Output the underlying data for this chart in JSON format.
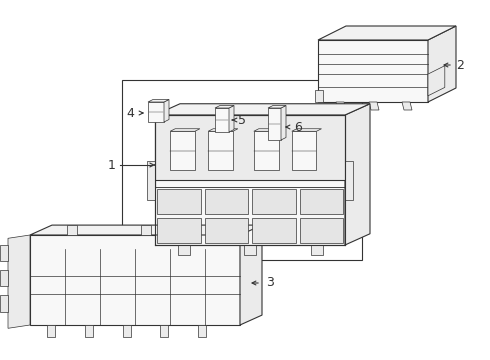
{
  "bg_color": "#ffffff",
  "line_color": "#333333",
  "fig_width": 4.9,
  "fig_height": 3.6,
  "dpi": 100,
  "lw_main": 0.8,
  "lw_thin": 0.5,
  "face_light": "#f8f8f8",
  "face_mid": "#ebebeb",
  "face_dark": "#d8d8d8",
  "face_top": "#f2f2f2"
}
